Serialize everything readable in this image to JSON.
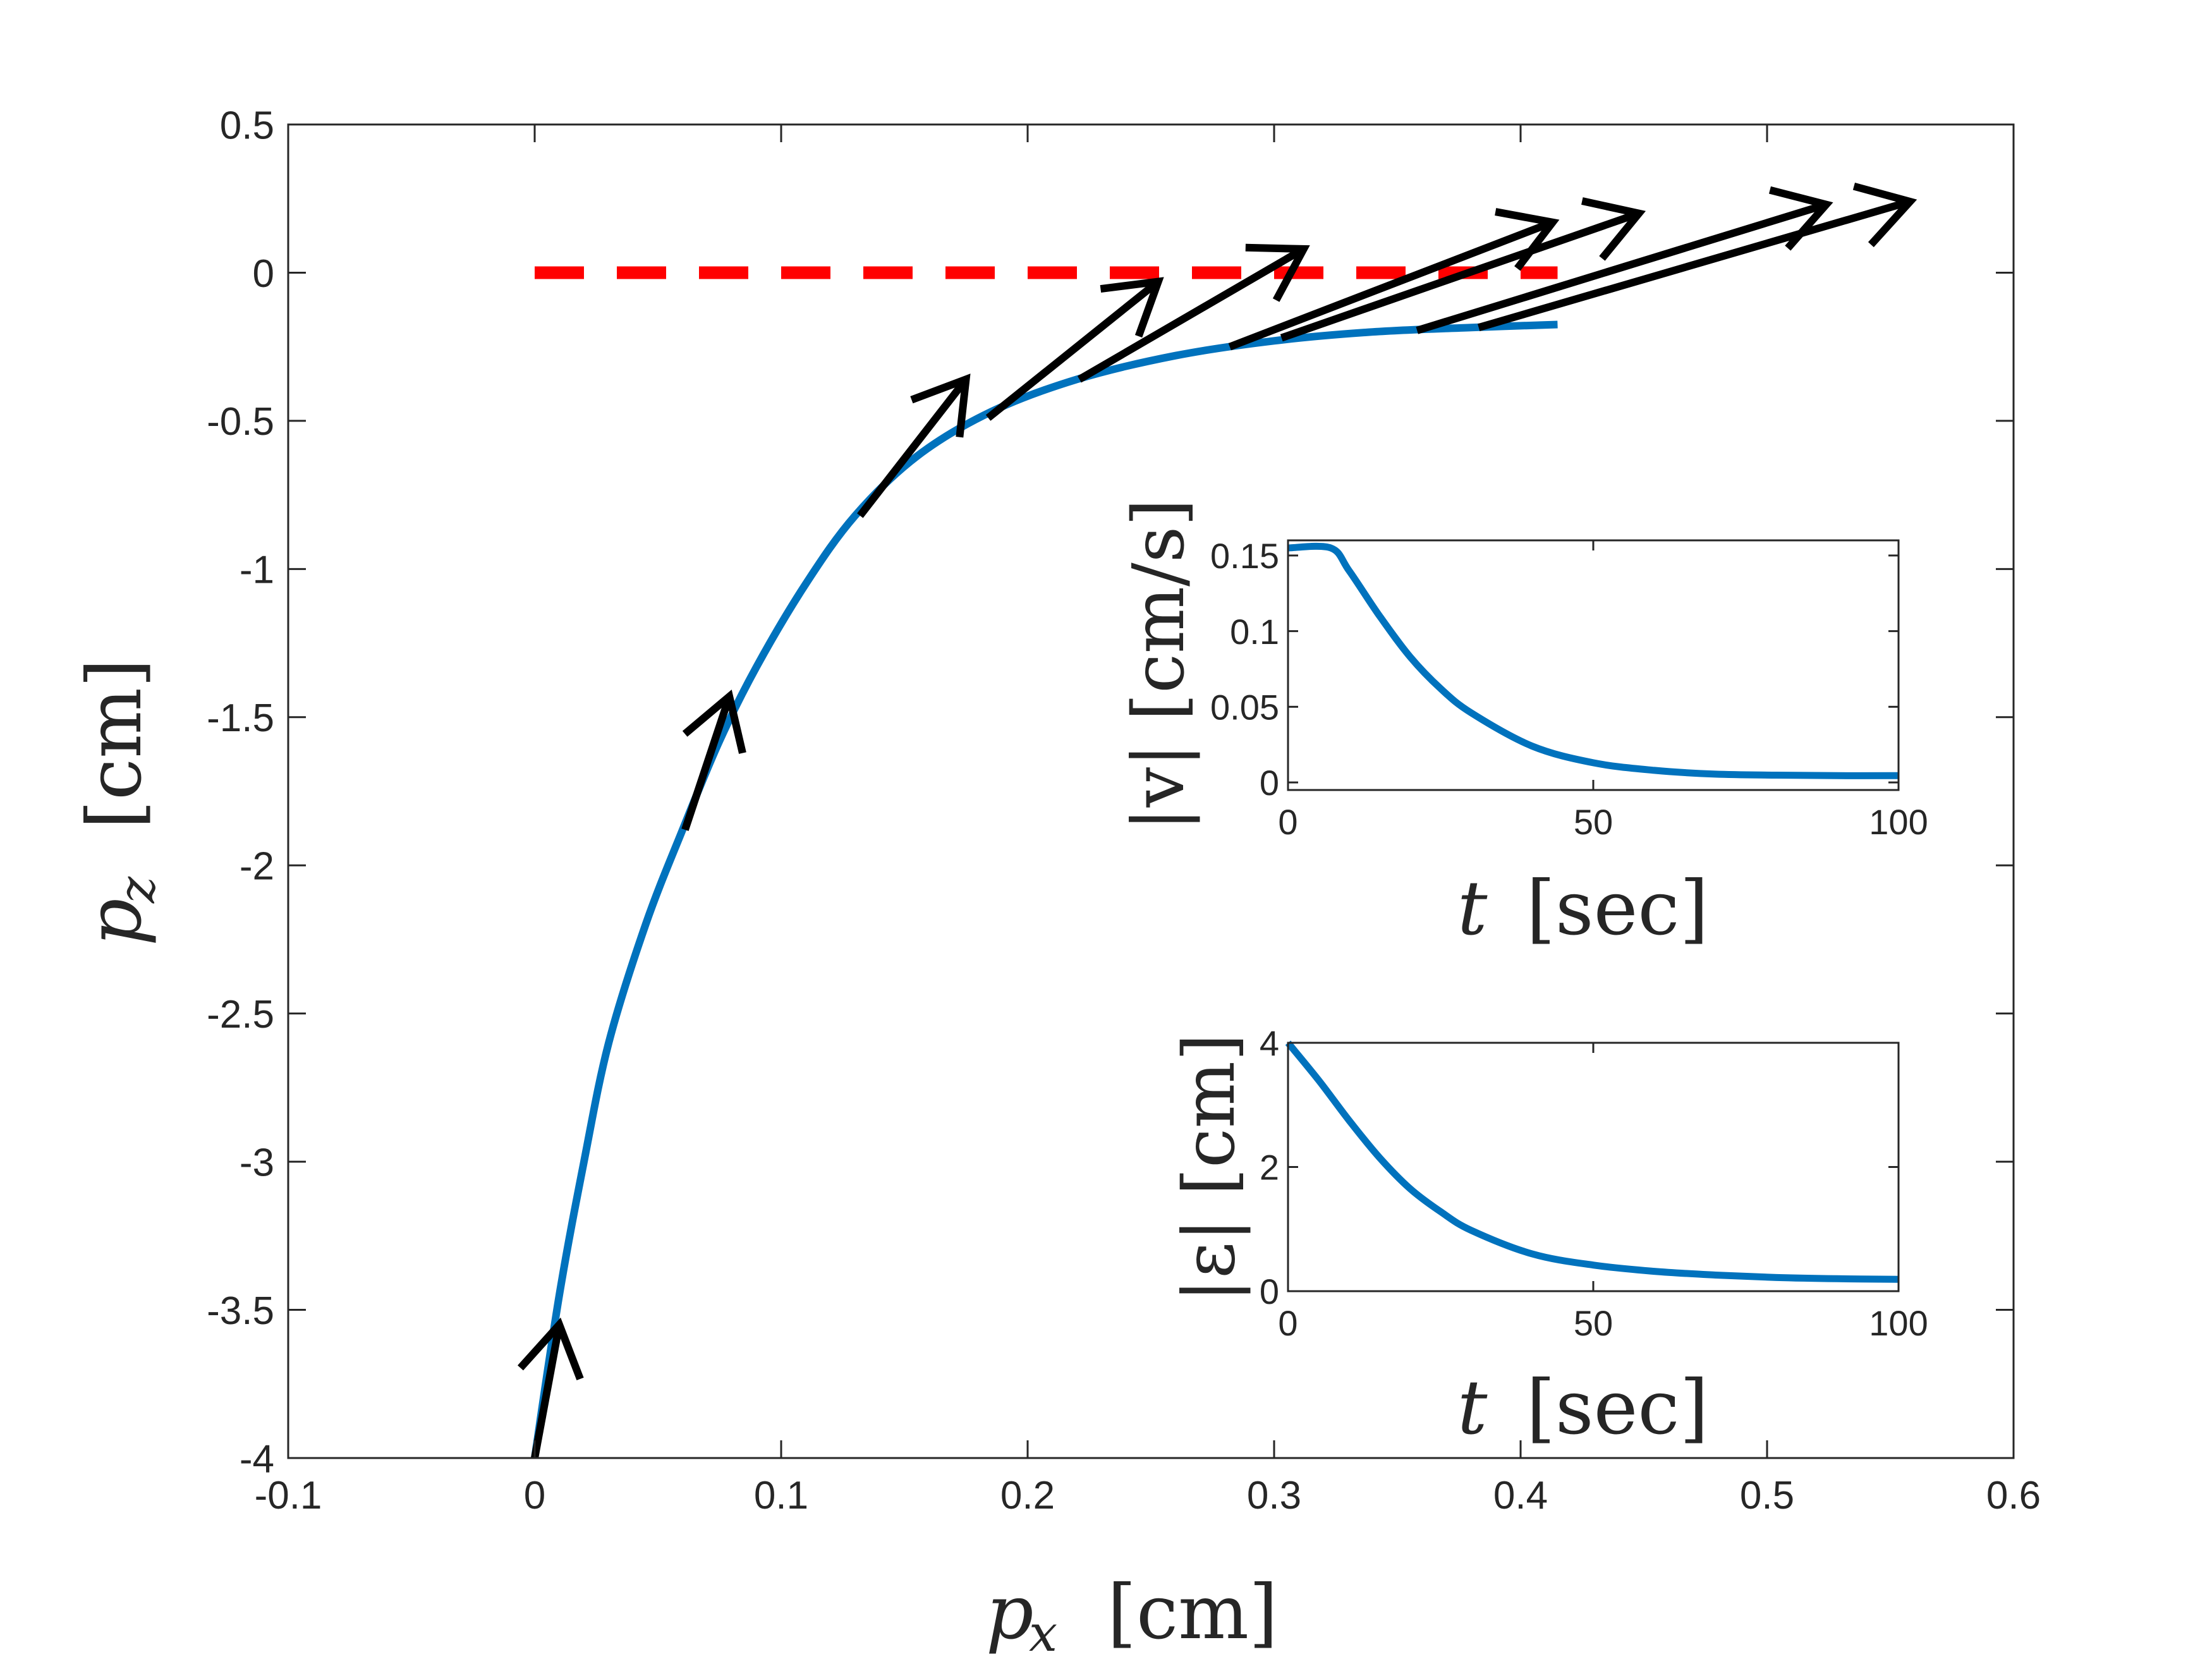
{
  "colors": {
    "trajectory": "#0072BD",
    "target": "#FF0000",
    "arrows": "#000000",
    "axes": "#262626",
    "background": "#FFFFFF"
  },
  "chart_data": [
    {
      "id": "main",
      "type": "line",
      "title": "",
      "xlabel": {
        "var": "p",
        "sub": "x",
        "unit": "[cm]"
      },
      "ylabel": {
        "var": "p",
        "sub": "z",
        "unit": "[cm]"
      },
      "xlim": [
        -0.1,
        0.6
      ],
      "ylim": [
        -4,
        0.5
      ],
      "xticks": [
        -0.1,
        0,
        0.1,
        0.2,
        0.3,
        0.4,
        0.5,
        0.6
      ],
      "xtick_labels": [
        "-0.1",
        "0",
        "0.1",
        "0.2",
        "0.3",
        "0.4",
        "0.5",
        "0.6"
      ],
      "yticks": [
        -4,
        -3.5,
        -3,
        -2.5,
        -2,
        -1.5,
        -1,
        -0.5,
        0,
        0.5
      ],
      "ytick_labels": [
        "-4",
        "-3.5",
        "-3",
        "-2.5",
        "-2",
        "-1.5",
        "-1",
        "-0.5",
        "0",
        "0.5"
      ],
      "grid": false,
      "series": [
        {
          "name": "trajectory",
          "style": "solid",
          "x": [
            0.0,
            0.01,
            0.02,
            0.03,
            0.045,
            0.06,
            0.075,
            0.09,
            0.11,
            0.13,
            0.155,
            0.185,
            0.22,
            0.26,
            0.3,
            0.34,
            0.38,
            0.415
          ],
          "y": [
            -4.0,
            -3.45,
            -3.0,
            -2.6,
            -2.2,
            -1.88,
            -1.58,
            -1.33,
            -1.05,
            -0.82,
            -0.62,
            -0.47,
            -0.36,
            -0.28,
            -0.23,
            -0.2,
            -0.185,
            -0.175
          ]
        },
        {
          "name": "target",
          "style": "dashed",
          "x": [
            0.0,
            0.415
          ],
          "y": [
            0.0,
            0.0
          ]
        }
      ],
      "quiver": {
        "description": "heading arrows along the trajectory",
        "arrows": [
          {
            "x0": 0.0,
            "y0": -4.0,
            "x1": 0.01,
            "y1": -3.55
          },
          {
            "x0": 0.061,
            "y0": -1.88,
            "x1": 0.079,
            "y1": -1.43
          },
          {
            "x0": 0.132,
            "y0": -0.82,
            "x1": 0.175,
            "y1": -0.36
          },
          {
            "x0": 0.184,
            "y0": -0.49,
            "x1": 0.253,
            "y1": -0.03
          },
          {
            "x0": 0.221,
            "y0": -0.36,
            "x1": 0.312,
            "y1": 0.08
          },
          {
            "x0": 0.282,
            "y0": -0.25,
            "x1": 0.413,
            "y1": 0.17
          },
          {
            "x0": 0.303,
            "y0": -0.22,
            "x1": 0.448,
            "y1": 0.2
          },
          {
            "x0": 0.358,
            "y0": -0.195,
            "x1": 0.524,
            "y1": 0.23
          },
          {
            "x0": 0.383,
            "y0": -0.185,
            "x1": 0.558,
            "y1": 0.24
          }
        ]
      }
    },
    {
      "id": "inset-velocity",
      "type": "line",
      "title": "",
      "xlabel": {
        "var": "t",
        "unit": "[sec]"
      },
      "ylabel": {
        "text": "|v| [cm/s]"
      },
      "xlim": [
        0,
        100
      ],
      "ylim": [
        -0.005,
        0.16
      ],
      "xticks": [
        0,
        50,
        100
      ],
      "xtick_labels": [
        "0",
        "50",
        "100"
      ],
      "yticks": [
        0,
        0.05,
        0.1,
        0.15
      ],
      "ytick_labels": [
        "0",
        "0.05",
        "0.1",
        "0.15"
      ],
      "grid": false,
      "series": [
        {
          "name": "speed",
          "x": [
            0,
            7,
            10,
            15,
            20,
            25,
            30,
            40,
            50,
            60,
            70,
            80,
            90,
            100
          ],
          "y": [
            0.155,
            0.155,
            0.14,
            0.11,
            0.083,
            0.062,
            0.046,
            0.024,
            0.013,
            0.008,
            0.0055,
            0.0048,
            0.0045,
            0.0045
          ]
        }
      ]
    },
    {
      "id": "inset-error",
      "type": "line",
      "title": "",
      "xlabel": {
        "var": "t",
        "unit": "[sec]"
      },
      "ylabel": {
        "text": "|ε| [cm]"
      },
      "xlim": [
        0,
        100
      ],
      "ylim": [
        0,
        4
      ],
      "xticks": [
        0,
        50,
        100
      ],
      "xtick_labels": [
        "0",
        "50",
        "100"
      ],
      "yticks": [
        0,
        2,
        4
      ],
      "ytick_labels": [
        "0",
        "2",
        "4"
      ],
      "grid": false,
      "series": [
        {
          "name": "error",
          "x": [
            0,
            5,
            10,
            15,
            20,
            25,
            30,
            40,
            50,
            60,
            70,
            80,
            90,
            100
          ],
          "y": [
            4.0,
            3.4,
            2.75,
            2.15,
            1.65,
            1.28,
            0.98,
            0.6,
            0.42,
            0.32,
            0.26,
            0.22,
            0.2,
            0.19
          ]
        }
      ]
    }
  ]
}
